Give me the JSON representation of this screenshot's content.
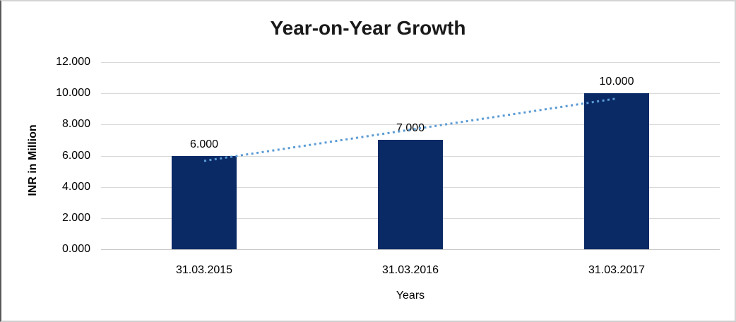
{
  "chart_data": {
    "type": "bar",
    "title": "Year-on-Year Growth",
    "xlabel": "Years",
    "ylabel": "INR in Million",
    "categories": [
      "31.03.2015",
      "31.03.2016",
      "31.03.2017"
    ],
    "values": [
      6000,
      7000,
      10000
    ],
    "data_labels": [
      "6.000",
      "7.000",
      "10.000"
    ],
    "ylim": [
      0,
      12000
    ],
    "y_tick_step": 2000,
    "y_tick_labels": [
      "12.000",
      "10.000",
      "8.000",
      "6.000",
      "4.000",
      "2.000",
      "0.000"
    ],
    "grid": true,
    "legend_position": "none",
    "trendline": {
      "type": "linear",
      "style": "dotted"
    },
    "colors": {
      "bar": "#0A2A66",
      "trendline": "#5B9BD5",
      "gridline": "#D9D9D9",
      "axis_line": "#C6C6C6",
      "text": "#000000"
    }
  }
}
